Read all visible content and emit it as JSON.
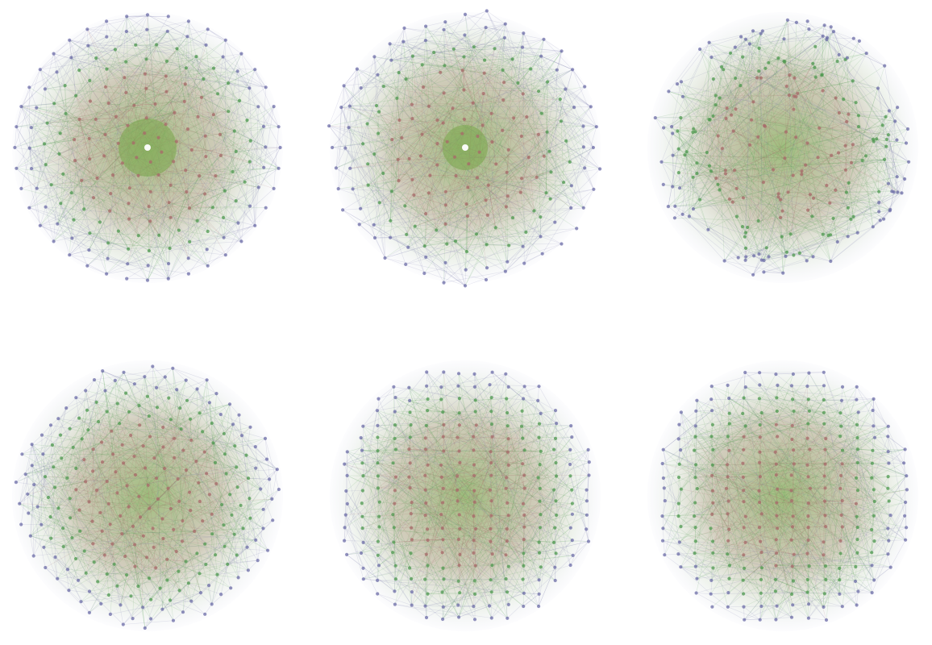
{
  "figure": {
    "panels": [
      {
        "id": "p1",
        "layout": "concentric-rings",
        "node_count": 240,
        "colors": {
          "outer": "#6e6ea8",
          "mid": "#4f9a50",
          "inner": "#a86a6a",
          "core": "#7fa852"
        }
      },
      {
        "id": "p2",
        "layout": "rings-mixed",
        "node_count": 240,
        "colors": {
          "outer": "#6e6ea8",
          "mid": "#4f9a50",
          "inner": "#a86a6a",
          "core": "#7fa852"
        }
      },
      {
        "id": "p3",
        "layout": "scattered-disc",
        "node_count": 240,
        "colors": {
          "outer": "#6e6ea8",
          "mid": "#4f9a50",
          "inner": "#a86a6a",
          "core": "#7fa852"
        }
      },
      {
        "id": "p4",
        "layout": "lattice-disc",
        "node_count": 240,
        "colors": {
          "outer": "#6e6ea8",
          "mid": "#4f9a50",
          "inner": "#a86a6a",
          "core": "#7fa852"
        }
      },
      {
        "id": "p5",
        "layout": "lattice-disc",
        "node_count": 240,
        "colors": {
          "outer": "#6e6ea8",
          "mid": "#4f9a50",
          "inner": "#a86a6a",
          "core": "#7fa852"
        }
      },
      {
        "id": "p6",
        "layout": "lattice-disc",
        "node_count": 240,
        "colors": {
          "outer": "#6e6ea8",
          "mid": "#4f9a50",
          "inner": "#a86a6a",
          "core": "#7fa852"
        }
      }
    ]
  }
}
